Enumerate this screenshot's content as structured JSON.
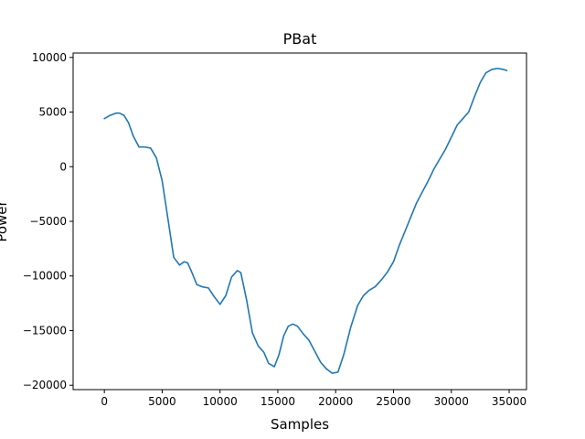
{
  "chart_data": {
    "type": "line",
    "title": "PBat",
    "xlabel": "Samples",
    "ylabel": "Power",
    "xlim": [
      -2700,
      36500
    ],
    "ylim": [
      -20400,
      10400
    ],
    "x_ticks": [
      0,
      5000,
      10000,
      15000,
      20000,
      25000,
      30000,
      35000
    ],
    "y_ticks": [
      -20000,
      -15000,
      -10000,
      -5000,
      0,
      5000,
      10000
    ],
    "grid": false,
    "colors": {
      "line": "#1f77b4",
      "axes": "#000000",
      "background": "#ffffff"
    },
    "series": [
      {
        "x": [
          0,
          500,
          1000,
          1300,
          1700,
          2100,
          2500,
          3000,
          3500,
          4000,
          4500,
          5000,
          5500,
          6000,
          6500,
          6900,
          7200,
          7500,
          8000,
          8500,
          9000,
          9500,
          10000,
          10500,
          11000,
          11500,
          11800,
          12300,
          12800,
          13300,
          13800,
          14200,
          14700,
          15100,
          15500,
          15900,
          16300,
          16700,
          17200,
          17700,
          18200,
          18700,
          19200,
          19700,
          20200,
          20700,
          21300,
          21900,
          22400,
          22900,
          23400,
          24000,
          24500,
          25000,
          25500,
          26000,
          26500,
          27000,
          27500,
          28000,
          28500,
          29000,
          29500,
          30000,
          30500,
          31000,
          31500,
          32000,
          32500,
          33000,
          33500,
          34000,
          34500,
          34800
        ],
        "y": [
          4400,
          4700,
          4900,
          4900,
          4700,
          4000,
          2800,
          1800,
          1800,
          1700,
          800,
          -1300,
          -4800,
          -8300,
          -9000,
          -8700,
          -8800,
          -9500,
          -10800,
          -11000,
          -11100,
          -11900,
          -12600,
          -11800,
          -10100,
          -9500,
          -9700,
          -12200,
          -15200,
          -16400,
          -17000,
          -18000,
          -18300,
          -17200,
          -15500,
          -14600,
          -14400,
          -14600,
          -15300,
          -15900,
          -16900,
          -17900,
          -18500,
          -18900,
          -18800,
          -17200,
          -14700,
          -12700,
          -11800,
          -11300,
          -11000,
          -10300,
          -9600,
          -8700,
          -7200,
          -5900,
          -4600,
          -3300,
          -2300,
          -1300,
          -200,
          700,
          1600,
          2700,
          3800,
          4400,
          5000,
          6400,
          7700,
          8600,
          8900,
          9000,
          8900,
          8800
        ]
      }
    ]
  }
}
